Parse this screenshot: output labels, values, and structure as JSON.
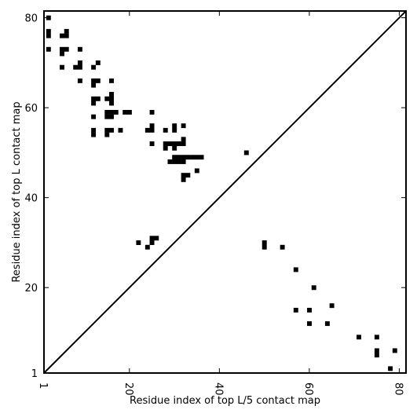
{
  "chart_data": {
    "type": "scatter",
    "xlabel": "Residue index of top L/5 contact map",
    "ylabel": "Residue index of top L contact map",
    "xlim": [
      1,
      81.5
    ],
    "ylim": [
      1,
      81.5
    ],
    "xticks": [
      1,
      20,
      40,
      60,
      80
    ],
    "yticks": [
      1,
      20,
      40,
      60,
      80
    ],
    "x_tick_labels": [
      "1",
      "20",
      "40",
      "60",
      "80"
    ],
    "y_tick_labels": [
      "1",
      "20",
      "40",
      "60",
      "80"
    ],
    "grid": false,
    "marker": "square",
    "diagonal": true,
    "colors": {
      "marker": "#000000",
      "diagonal": "#000000",
      "frame": "#000000"
    },
    "series": [
      {
        "points": [
          [
            2,
            80
          ],
          [
            2,
            77
          ],
          [
            2,
            76
          ],
          [
            2,
            73
          ],
          [
            6,
            77
          ],
          [
            6,
            76
          ],
          [
            5,
            76
          ],
          [
            5,
            73
          ],
          [
            6,
            73
          ],
          [
            5,
            72
          ],
          [
            5,
            69
          ],
          [
            8,
            69
          ],
          [
            9,
            69
          ],
          [
            9,
            70
          ],
          [
            9,
            73
          ],
          [
            9,
            66
          ],
          [
            12,
            69
          ],
          [
            13,
            70
          ],
          [
            12,
            66
          ],
          [
            13,
            66
          ],
          [
            12,
            65
          ],
          [
            16,
            66
          ],
          [
            12,
            62
          ],
          [
            13,
            62
          ],
          [
            12,
            61
          ],
          [
            15,
            62
          ],
          [
            16,
            62
          ],
          [
            16,
            63
          ],
          [
            16,
            61
          ],
          [
            12,
            58
          ],
          [
            15,
            59
          ],
          [
            15,
            58
          ],
          [
            16,
            58
          ],
          [
            16,
            59
          ],
          [
            17,
            59
          ],
          [
            19,
            59
          ],
          [
            20,
            59
          ],
          [
            25,
            59
          ],
          [
            12,
            55
          ],
          [
            12,
            54
          ],
          [
            15,
            55
          ],
          [
            15,
            54
          ],
          [
            16,
            55
          ],
          [
            18,
            55
          ],
          [
            24,
            55
          ],
          [
            25,
            55
          ],
          [
            25,
            56
          ],
          [
            25,
            52
          ],
          [
            28,
            55
          ],
          [
            30,
            56
          ],
          [
            30,
            55
          ],
          [
            32,
            56
          ],
          [
            28,
            52
          ],
          [
            28,
            51
          ],
          [
            29,
            52
          ],
          [
            30,
            52
          ],
          [
            31,
            52
          ],
          [
            32,
            52
          ],
          [
            32,
            53
          ],
          [
            30,
            51
          ],
          [
            29,
            48
          ],
          [
            30,
            48
          ],
          [
            31,
            48
          ],
          [
            32,
            48
          ],
          [
            30,
            49
          ],
          [
            31,
            49
          ],
          [
            32,
            49
          ],
          [
            33,
            49
          ],
          [
            34,
            49
          ],
          [
            35,
            49
          ],
          [
            36,
            49
          ],
          [
            35,
            46
          ],
          [
            32,
            45
          ],
          [
            33,
            45
          ],
          [
            32,
            44
          ],
          [
            46,
            50
          ],
          [
            22,
            30
          ],
          [
            24,
            29
          ],
          [
            25,
            30
          ],
          [
            25,
            31
          ],
          [
            26,
            31
          ],
          [
            50,
            30
          ],
          [
            50,
            29
          ],
          [
            54,
            29
          ],
          [
            57,
            24
          ],
          [
            61,
            20
          ],
          [
            57,
            15
          ],
          [
            60,
            15
          ],
          [
            65,
            16
          ],
          [
            60,
            12
          ],
          [
            64,
            12
          ],
          [
            71,
            9
          ],
          [
            75,
            9
          ],
          [
            75,
            6
          ],
          [
            75,
            5
          ],
          [
            79,
            6
          ],
          [
            78,
            2
          ]
        ]
      }
    ]
  }
}
